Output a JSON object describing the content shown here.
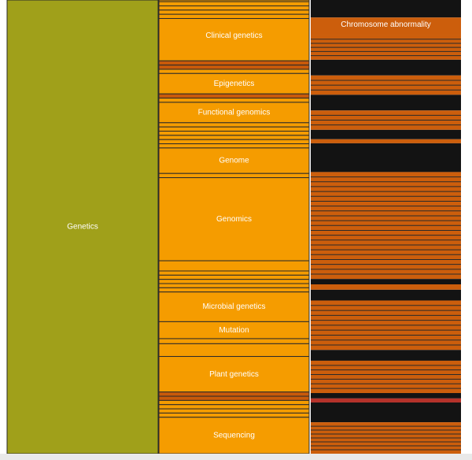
{
  "chart_data": {
    "type": "icicle",
    "title": "",
    "colors": {
      "level1": "#a0a01a",
      "level2": "#f59c00",
      "level2_alt": "#c85a0a",
      "level3": "#cc5e0c",
      "level3_dark": "#131313",
      "level3_red": "#b5322a",
      "separator": "#2a2a2a",
      "background": "#ffffff"
    },
    "levels": [
      {
        "name": "level1",
        "nodes": [
          {
            "label": "Genetics",
            "share": 1.0
          }
        ]
      },
      {
        "name": "level2",
        "nodes": [
          {
            "label": "",
            "share": 0.0035
          },
          {
            "label": "",
            "share": 0.0088
          },
          {
            "label": "",
            "share": 0.0088
          },
          {
            "label": "",
            "share": 0.0088
          },
          {
            "label": "",
            "share": 0.0088
          },
          {
            "label": "Clinical genetics",
            "share": 0.0886
          },
          {
            "label": "",
            "share": 0.0088,
            "alt": true
          },
          {
            "label": "",
            "share": 0.0088,
            "alt": true
          },
          {
            "label": "",
            "share": 0.0088
          },
          {
            "label": "Epigenetics",
            "share": 0.0427
          },
          {
            "label": "",
            "share": 0.0088,
            "alt": true
          },
          {
            "label": "",
            "share": 0.0088
          },
          {
            "label": "Functional genomics",
            "share": 0.0427
          },
          {
            "label": "",
            "share": 0.0088
          },
          {
            "label": "",
            "share": 0.0088
          },
          {
            "label": "",
            "share": 0.0088
          },
          {
            "label": "",
            "share": 0.0088
          },
          {
            "label": "",
            "share": 0.0088
          },
          {
            "label": "",
            "share": 0.0088
          },
          {
            "label": "Genome",
            "share": 0.0533
          },
          {
            "label": "",
            "share": 0.0088
          },
          {
            "label": "Genomics",
            "share": 0.1738
          },
          {
            "label": "",
            "share": 0.0213
          },
          {
            "label": "",
            "share": 0.0088
          },
          {
            "label": "",
            "share": 0.0088
          },
          {
            "label": "",
            "share": 0.0088
          },
          {
            "label": "",
            "share": 0.0088
          },
          {
            "label": "",
            "share": 0.0088
          },
          {
            "label": "Microbial genetics",
            "share": 0.0621
          },
          {
            "label": "Mutation",
            "share": 0.0355
          },
          {
            "label": "",
            "share": 0.0106
          },
          {
            "label": "",
            "share": 0.0266
          },
          {
            "label": "Plant genetics",
            "share": 0.0744
          },
          {
            "label": "",
            "share": 0.0088,
            "alt": true
          },
          {
            "label": "",
            "share": 0.0088,
            "alt": true
          },
          {
            "label": "",
            "share": 0.0088
          },
          {
            "label": "",
            "share": 0.0088
          },
          {
            "label": "",
            "share": 0.0088
          },
          {
            "label": "",
            "share": 0.0088
          },
          {
            "label": "Sequencing",
            "share": 0.0762
          }
        ]
      },
      {
        "name": "level3",
        "nodes": [
          {
            "label": "",
            "share": 0.039,
            "tone": "dark"
          },
          {
            "label": "Chromosome abnormality",
            "share": 0.039,
            "tone": "orange"
          },
          {
            "label": "",
            "share": 0.055,
            "tone": "orange",
            "lines": 6
          },
          {
            "label": "",
            "share": 0.035,
            "tone": "dark"
          },
          {
            "label": "",
            "share": 0.043,
            "tone": "orange",
            "lines": 4
          },
          {
            "label": "",
            "share": 0.035,
            "tone": "dark"
          },
          {
            "label": "",
            "share": 0.043,
            "tone": "orange",
            "lines": 4
          },
          {
            "label": "",
            "share": 0.021,
            "tone": "dark"
          },
          {
            "label": "",
            "share": 0.009,
            "tone": "orange"
          },
          {
            "label": "",
            "share": 0.064,
            "tone": "dark"
          },
          {
            "label": "",
            "share": 0.238,
            "tone": "orange",
            "lines": 22
          },
          {
            "label": "",
            "share": 0.012,
            "tone": "dark"
          },
          {
            "label": "",
            "share": 0.012,
            "tone": "orange"
          },
          {
            "label": "",
            "share": 0.024,
            "tone": "dark"
          },
          {
            "label": "",
            "share": 0.11,
            "tone": "orange",
            "lines": 10
          },
          {
            "label": "",
            "share": 0.024,
            "tone": "dark"
          },
          {
            "label": "",
            "share": 0.072,
            "tone": "orange",
            "lines": 7
          },
          {
            "label": "",
            "share": 0.012,
            "tone": "dark"
          },
          {
            "label": "",
            "share": 0.009,
            "tone": "red"
          },
          {
            "label": "",
            "share": 0.044,
            "tone": "dark"
          },
          {
            "label": "",
            "share": 0.07,
            "tone": "orange",
            "lines": 8
          }
        ]
      }
    ]
  }
}
